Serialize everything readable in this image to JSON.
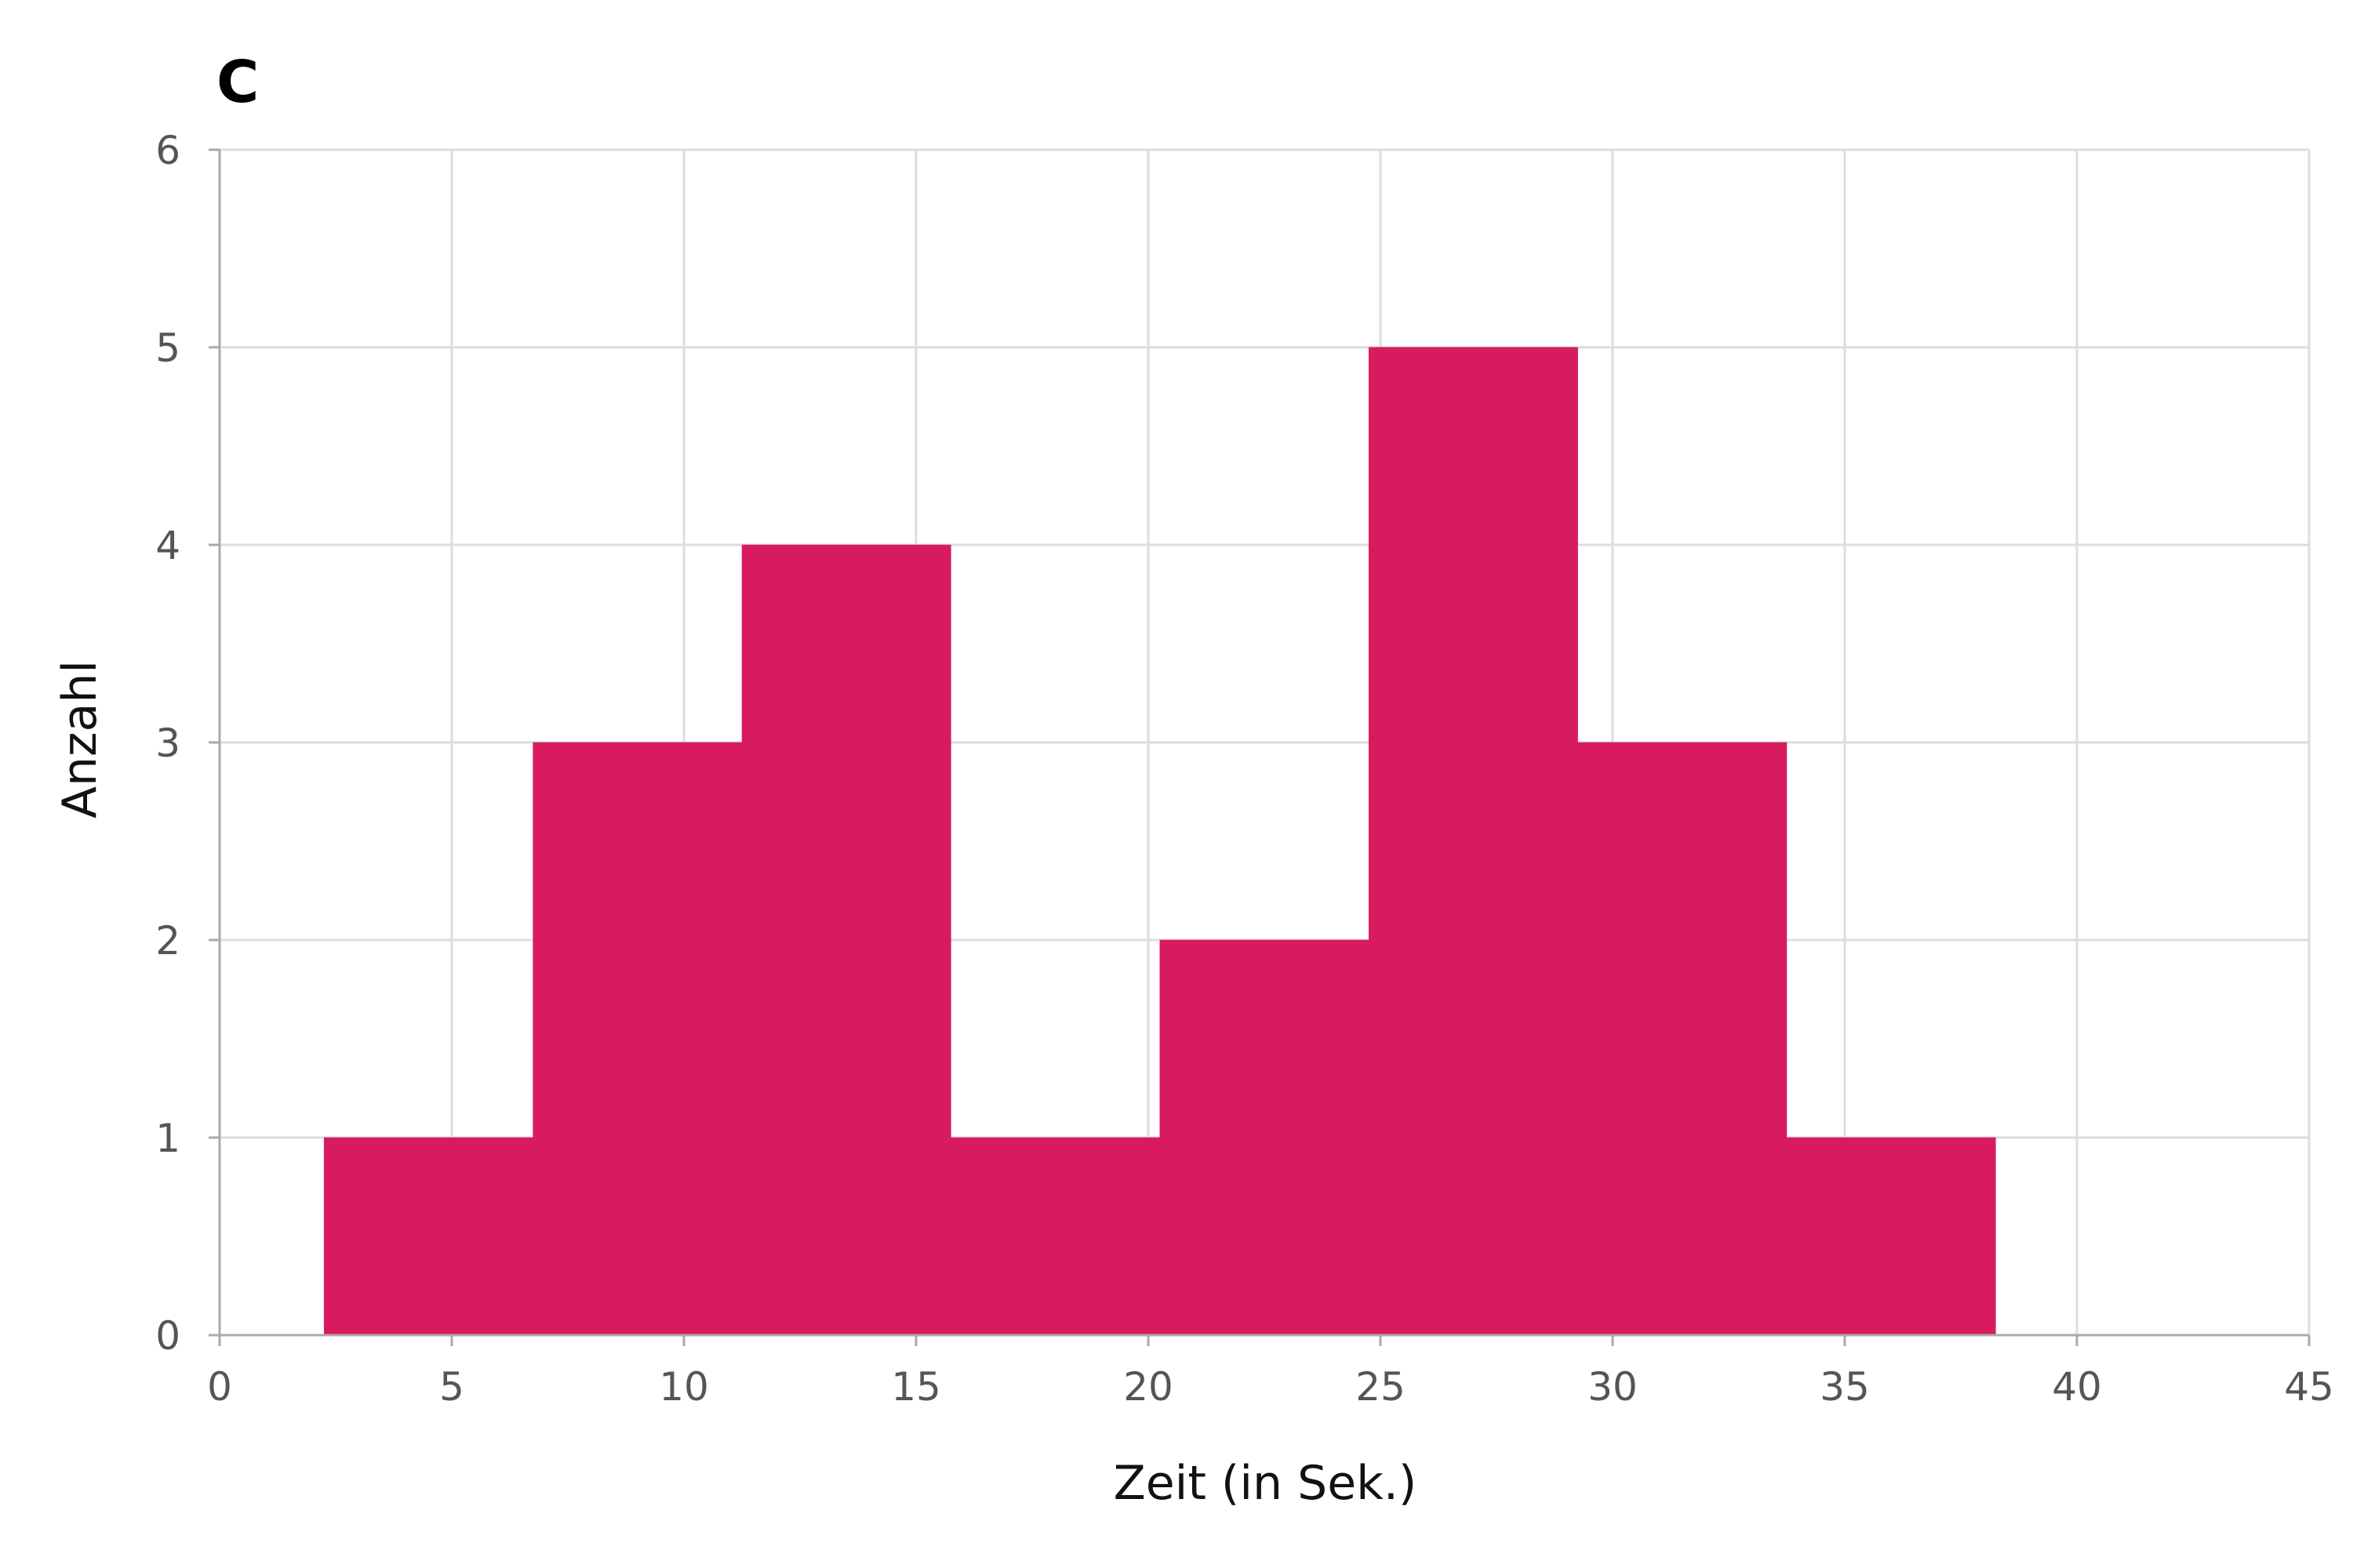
{
  "chart_data": {
    "type": "bar",
    "title": "C",
    "xlabel": "Zeit (in Sek.)",
    "ylabel": "Anzahl",
    "xlim": [
      0,
      45
    ],
    "ylim": [
      0,
      6
    ],
    "x_ticks": [
      0,
      5,
      10,
      15,
      20,
      25,
      30,
      35,
      40,
      45
    ],
    "y_ticks": [
      0,
      1,
      2,
      3,
      4,
      5,
      6
    ],
    "grid": true,
    "colors": {
      "bar": "#d81b60",
      "grid": "#dddddd",
      "axis": "#aaaaaa"
    },
    "bins": [
      {
        "x0": 2.25,
        "x1": 6.75,
        "count": 1
      },
      {
        "x0": 6.75,
        "x1": 11.25,
        "count": 3
      },
      {
        "x0": 11.25,
        "x1": 15.75,
        "count": 4
      },
      {
        "x0": 15.75,
        "x1": 20.25,
        "count": 1
      },
      {
        "x0": 20.25,
        "x1": 24.75,
        "count": 2
      },
      {
        "x0": 24.75,
        "x1": 29.25,
        "count": 5
      },
      {
        "x0": 29.25,
        "x1": 33.75,
        "count": 3
      },
      {
        "x0": 33.75,
        "x1": 38.25,
        "count": 1
      }
    ]
  }
}
